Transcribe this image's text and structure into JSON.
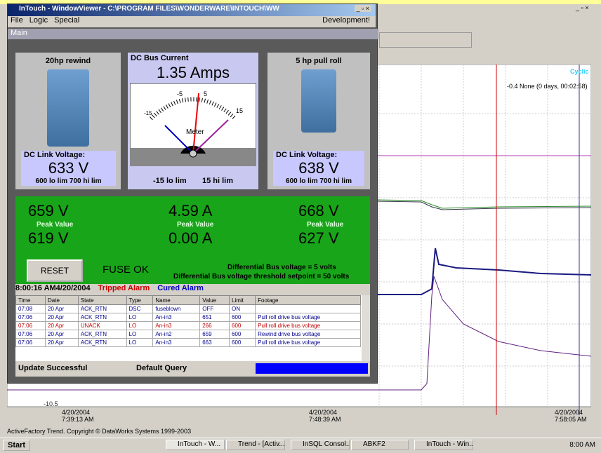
{
  "window": {
    "title": "InTouch - WindowViewer - C:\\PROGRAM FILES\\WONDERWARE\\INTOUCH\\WW",
    "menu": [
      "File",
      "Logic",
      "Special"
    ],
    "menu_right": "Development!",
    "panel": "Main"
  },
  "drives": [
    {
      "name": "20hp rewind",
      "label": "DC Link Voltage:",
      "value": "633 V",
      "limits": "600 lo lim 700 hi lim"
    },
    {
      "name": "5 hp pull roll",
      "label": "DC Link Voltage:",
      "value": "638 V",
      "limits": "600 lo lim 700 hi lim"
    }
  ],
  "meter": {
    "title": "DC Bus Current",
    "reading": "1.35 Amps",
    "scale": [
      "-15",
      "-5",
      "5",
      "15"
    ],
    "label": "Meter",
    "lo": "-15 lo lim",
    "hi": "15 hi lim"
  },
  "peaks": [
    {
      "top": "659 V",
      "label": "Peak Value",
      "bottom": "619 V"
    },
    {
      "top": "4.59 A",
      "label": "Peak Value",
      "bottom": "0.00 A"
    },
    {
      "top": "668 V",
      "label": "Peak Value",
      "bottom": "627 V"
    }
  ],
  "controls": {
    "reset": "RESET",
    "status": "FUSE OK",
    "diff1": "Differential Bus voltage  = 5 volts",
    "diff2": "Differential Bus voltage threshold setpoint = 50 volts"
  },
  "alarm": {
    "timestamp": "8:00:16 AM4/20/2004",
    "tripped": "Tripped Alarm",
    "cured": "Cured Alarm",
    "columns": [
      "Time",
      "Date",
      "State",
      "Type",
      "Name",
      "Value",
      "Limit",
      "Footage"
    ],
    "rows": [
      {
        "color": "#00008b",
        "cells": [
          "07:08",
          "20 Apr",
          "ACK_RTN",
          "DSC",
          "fuseblown",
          "OFF",
          "ON"
        ]
      },
      {
        "color": "#00008b",
        "cells": [
          "07:06",
          "20 Apr",
          "ACK_RTN",
          "LO",
          "An-in3",
          "651",
          "600",
          "Pull roll drive bus voltage"
        ]
      },
      {
        "color": "#c00000",
        "cells": [
          "07:06",
          "20 Apr",
          "UNACK",
          "LO",
          "An-in3",
          "266",
          "600",
          "Pull roll drive bus voltage"
        ]
      },
      {
        "color": "#00008b",
        "cells": [
          "07:06",
          "20 Apr",
          "ACK_RTN",
          "LO",
          "An-in2",
          "659",
          "600",
          "Rewind drive bus voltage"
        ]
      },
      {
        "color": "#00008b",
        "cells": [
          "07:06",
          "20 Apr",
          "ACK_RTN",
          "LO",
          "An-in3",
          "663",
          "600",
          "Pull roll drive bus voltage"
        ]
      }
    ]
  },
  "statusbar": [
    "Update Successful",
    "Default Query"
  ],
  "trend": {
    "cyclic": "Cyclic",
    "cursor": "-0.4 None (0 days, 00:02:58)",
    "ymin": "-10.5",
    "xlabels": [
      [
        "4/20/2004",
        "7:39:13 AM"
      ],
      [
        "4/20/2004",
        "7:48:39 AM"
      ],
      [
        "4/20/2004",
        "7:58:05 AM"
      ]
    ],
    "footer": "ActiveFactory Trend. Copyright © DataWorks Systems 1999-2003"
  },
  "taskbar": {
    "start": "Start",
    "tasks": [
      "InTouch - W...",
      "Trend - [Activ...",
      "InSQL Consol...",
      "ABKF2",
      "InTouch - Win..."
    ],
    "clock": "8:00 AM"
  }
}
